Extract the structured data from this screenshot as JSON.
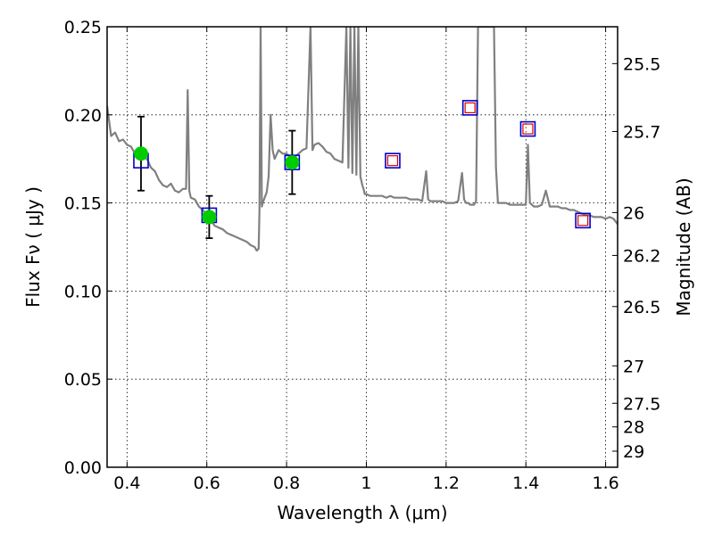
{
  "chart_data": {
    "type": "line",
    "title": "",
    "xlabel": "Wavelength  λ (μm)",
    "ylabel": "Flux  Fν  ( μJy )",
    "y2label": "Magnitude (AB)",
    "xlim": [
      0.35,
      1.63
    ],
    "ylim": [
      0.0,
      0.25
    ],
    "grid": true,
    "xticks": [
      {
        "v": 0.4,
        "label": "0.4"
      },
      {
        "v": 0.6,
        "label": "0.6"
      },
      {
        "v": 0.8,
        "label": "0.8"
      },
      {
        "v": 1.0,
        "label": "1"
      },
      {
        "v": 1.2,
        "label": "1.2"
      },
      {
        "v": 1.4,
        "label": "1.4"
      },
      {
        "v": 1.6,
        "label": "1.6"
      }
    ],
    "yticks": [
      {
        "v": 0.0,
        "label": "0.00"
      },
      {
        "v": 0.05,
        "label": "0.05"
      },
      {
        "v": 0.1,
        "label": "0.10"
      },
      {
        "v": 0.15,
        "label": "0.15"
      },
      {
        "v": 0.2,
        "label": "0.20"
      },
      {
        "v": 0.25,
        "label": "0.25"
      }
    ],
    "y2ticks": [
      {
        "mag": 25.5,
        "label": "25.5"
      },
      {
        "mag": 25.7,
        "label": "25.7"
      },
      {
        "mag": 26,
        "label": "26"
      },
      {
        "mag": 26.2,
        "label": "26.2"
      },
      {
        "mag": 26.5,
        "label": "26.5"
      },
      {
        "mag": 27,
        "label": "27"
      },
      {
        "mag": 27.5,
        "label": "27.5"
      },
      {
        "mag": 28,
        "label": "28"
      },
      {
        "mag": 29,
        "label": "29"
      }
    ],
    "colors": {
      "sed": "#808080",
      "observed": "#00cc00",
      "model_box": "#0000cc",
      "predicted": "#dd0000",
      "errorbar": "#000000"
    },
    "sed_model": {
      "x": [
        0.35,
        0.36,
        0.37,
        0.38,
        0.39,
        0.4,
        0.41,
        0.42,
        0.43,
        0.44,
        0.45,
        0.46,
        0.47,
        0.48,
        0.49,
        0.5,
        0.51,
        0.52,
        0.53,
        0.54,
        0.548,
        0.552,
        0.556,
        0.56,
        0.57,
        0.58,
        0.59,
        0.6,
        0.61,
        0.62,
        0.63,
        0.64,
        0.65,
        0.66,
        0.67,
        0.68,
        0.69,
        0.7,
        0.71,
        0.72,
        0.725,
        0.73,
        0.732,
        0.735,
        0.738,
        0.74,
        0.75,
        0.755,
        0.76,
        0.765,
        0.77,
        0.78,
        0.79,
        0.8,
        0.81,
        0.82,
        0.83,
        0.84,
        0.85,
        0.86,
        0.865,
        0.87,
        0.88,
        0.89,
        0.9,
        0.91,
        0.92,
        0.93,
        0.94,
        0.95,
        0.955,
        0.96,
        0.965,
        0.97,
        0.975,
        0.98,
        0.985,
        0.99,
        0.993,
        0.996,
        1.0,
        1.01,
        1.02,
        1.03,
        1.04,
        1.05,
        1.06,
        1.07,
        1.08,
        1.09,
        1.1,
        1.11,
        1.12,
        1.13,
        1.14,
        1.15,
        1.155,
        1.16,
        1.17,
        1.18,
        1.19,
        1.2,
        1.21,
        1.22,
        1.23,
        1.24,
        1.245,
        1.25,
        1.255,
        1.26,
        1.27,
        1.275,
        1.28,
        1.29,
        1.3,
        1.31,
        1.32,
        1.325,
        1.33,
        1.34,
        1.35,
        1.36,
        1.37,
        1.38,
        1.39,
        1.4,
        1.405,
        1.41,
        1.42,
        1.43,
        1.44,
        1.45,
        1.46,
        1.47,
        1.48,
        1.49,
        1.5,
        1.51,
        1.52,
        1.53,
        1.54,
        1.55,
        1.56,
        1.57,
        1.58,
        1.59,
        1.6,
        1.61,
        1.62,
        1.63
      ],
      "y": [
        0.205,
        0.188,
        0.19,
        0.185,
        0.186,
        0.183,
        0.182,
        0.178,
        0.18,
        0.176,
        0.175,
        0.17,
        0.168,
        0.163,
        0.16,
        0.159,
        0.161,
        0.157,
        0.156,
        0.158,
        0.158,
        0.214,
        0.157,
        0.153,
        0.152,
        0.148,
        0.146,
        0.143,
        0.14,
        0.137,
        0.136,
        0.135,
        0.133,
        0.132,
        0.131,
        0.13,
        0.129,
        0.128,
        0.126,
        0.125,
        0.123,
        0.124,
        0.145,
        0.25,
        0.148,
        0.15,
        0.156,
        0.165,
        0.2,
        0.18,
        0.175,
        0.18,
        0.178,
        0.178,
        0.176,
        0.176,
        0.178,
        0.18,
        0.181,
        0.25,
        0.18,
        0.183,
        0.184,
        0.182,
        0.179,
        0.178,
        0.175,
        0.174,
        0.173,
        0.25,
        0.17,
        0.25,
        0.167,
        0.25,
        0.166,
        0.25,
        0.165,
        0.16,
        0.158,
        0.155,
        0.155,
        0.154,
        0.154,
        0.154,
        0.154,
        0.153,
        0.154,
        0.153,
        0.153,
        0.153,
        0.153,
        0.152,
        0.152,
        0.152,
        0.151,
        0.168,
        0.152,
        0.151,
        0.151,
        0.151,
        0.151,
        0.15,
        0.15,
        0.15,
        0.151,
        0.167,
        0.152,
        0.15,
        0.15,
        0.149,
        0.149,
        0.151,
        0.25,
        0.25,
        0.25,
        0.25,
        0.25,
        0.17,
        0.15,
        0.15,
        0.15,
        0.149,
        0.149,
        0.149,
        0.149,
        0.149,
        0.183,
        0.15,
        0.148,
        0.148,
        0.149,
        0.157,
        0.148,
        0.148,
        0.148,
        0.147,
        0.147,
        0.146,
        0.146,
        0.145,
        0.144,
        0.143,
        0.143,
        0.142,
        0.142,
        0.142,
        0.141,
        0.142,
        0.141,
        0.138
      ]
    },
    "observed_points": [
      {
        "x": 0.435,
        "y": 0.178,
        "err": 0.021
      },
      {
        "x": 0.606,
        "y": 0.142,
        "err": 0.012
      },
      {
        "x": 0.814,
        "y": 0.173,
        "err": 0.018
      }
    ],
    "model_boxes": [
      {
        "x": 0.435,
        "y": 0.174
      },
      {
        "x": 0.606,
        "y": 0.143
      },
      {
        "x": 0.814,
        "y": 0.173
      },
      {
        "x": 1.066,
        "y": 0.174
      },
      {
        "x": 1.26,
        "y": 0.204
      },
      {
        "x": 1.405,
        "y": 0.192
      },
      {
        "x": 1.543,
        "y": 0.14
      }
    ],
    "predicted_points": [
      {
        "x": 1.066,
        "y": 0.174
      },
      {
        "x": 1.26,
        "y": 0.204
      },
      {
        "x": 1.405,
        "y": 0.192
      },
      {
        "x": 1.543,
        "y": 0.14
      }
    ]
  }
}
